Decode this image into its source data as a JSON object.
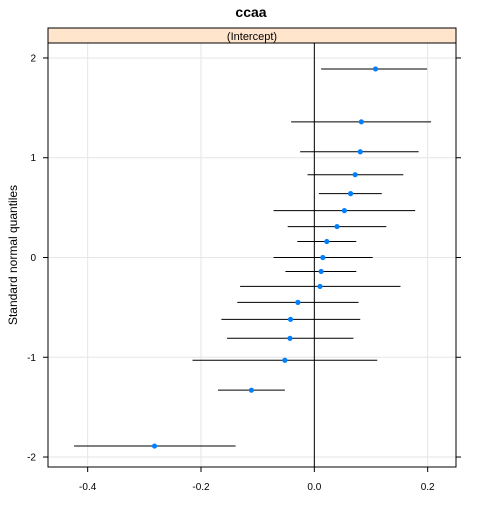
{
  "chart_data": {
    "type": "scatter",
    "title": "ccaa",
    "panel_label": "(Intercept)",
    "xlabel": "",
    "ylabel": "Standard normal quantiles",
    "xlim": [
      -0.47,
      0.25
    ],
    "ylim": [
      -2.1,
      2.15
    ],
    "x_ticks": [
      -0.4,
      -0.2,
      0.0,
      0.2
    ],
    "x_tick_labels": [
      "-0.4",
      "-0.2",
      "0.0",
      "0.2"
    ],
    "y_ticks": [
      2,
      1,
      0,
      -1,
      -2
    ],
    "y_tick_labels": [
      "2",
      "1",
      "0",
      "-1",
      "-2"
    ],
    "reference_line_x": 0.0,
    "grid": true,
    "points": [
      {
        "x": 0.108,
        "y": 1.89,
        "lo": 0.012,
        "hi": 0.199
      },
      {
        "x": 0.083,
        "y": 1.36,
        "lo": -0.041,
        "hi": 0.206
      },
      {
        "x": 0.081,
        "y": 1.06,
        "lo": -0.025,
        "hi": 0.184
      },
      {
        "x": 0.072,
        "y": 0.83,
        "lo": -0.012,
        "hi": 0.157
      },
      {
        "x": 0.064,
        "y": 0.64,
        "lo": 0.008,
        "hi": 0.119
      },
      {
        "x": 0.053,
        "y": 0.47,
        "lo": -0.072,
        "hi": 0.178
      },
      {
        "x": 0.04,
        "y": 0.31,
        "lo": -0.047,
        "hi": 0.127
      },
      {
        "x": 0.022,
        "y": 0.16,
        "lo": -0.03,
        "hi": 0.074
      },
      {
        "x": 0.015,
        "y": 0.0,
        "lo": -0.072,
        "hi": 0.103
      },
      {
        "x": 0.012,
        "y": -0.14,
        "lo": -0.051,
        "hi": 0.074
      },
      {
        "x": 0.01,
        "y": -0.29,
        "lo": -0.131,
        "hi": 0.152
      },
      {
        "x": -0.029,
        "y": -0.45,
        "lo": -0.136,
        "hi": 0.078
      },
      {
        "x": -0.042,
        "y": -0.62,
        "lo": -0.164,
        "hi": 0.081
      },
      {
        "x": -0.043,
        "y": -0.81,
        "lo": -0.154,
        "hi": 0.069
      },
      {
        "x": -0.052,
        "y": -1.03,
        "lo": -0.215,
        "hi": 0.111
      },
      {
        "x": -0.111,
        "y": -1.33,
        "lo": -0.17,
        "hi": -0.052
      },
      {
        "x": -0.282,
        "y": -1.89,
        "lo": -0.424,
        "hi": -0.139
      }
    ],
    "colors": {
      "point": "#0080ff",
      "strip_fill": "#ffe5cc",
      "grid": "#e6e6e6",
      "errorbar": "#000000"
    }
  }
}
